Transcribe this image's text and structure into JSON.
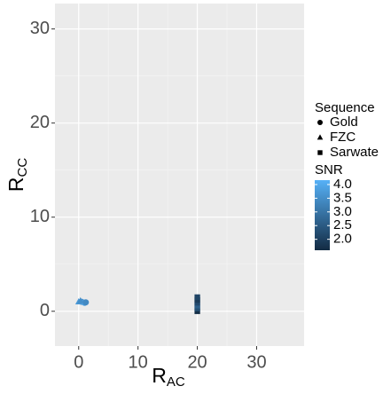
{
  "chart_data": {
    "type": "scatter",
    "xlabel": {
      "text": "R",
      "sub": "AC"
    },
    "ylabel": {
      "text": "R",
      "sub": "CC"
    },
    "xlim": [
      -4,
      38
    ],
    "xticks": [
      0,
      10,
      20,
      30
    ],
    "ylim": [
      -3.7,
      32.7
    ],
    "yticks": [
      0,
      10,
      20,
      30
    ],
    "grid": true,
    "shape_legend_title": "Sequence",
    "series": [
      {
        "name": "Gold",
        "shape": "circle",
        "x": [
          0.5,
          1,
          1.2
        ],
        "y": [
          1,
          0.9,
          0.95
        ],
        "snr": [
          3.6,
          3.8,
          3.4
        ]
      },
      {
        "name": "FZC",
        "shape": "triangle",
        "x": [
          0,
          0.3
        ],
        "y": [
          1.0,
          1.1
        ],
        "snr": [
          3.7,
          3.5
        ]
      },
      {
        "name": "Sarwate",
        "shape": "square",
        "x": [
          20,
          20,
          20,
          20,
          20,
          20
        ],
        "y": [
          0,
          0.3,
          0.6,
          0.9,
          1.2,
          1.5
        ],
        "snr": [
          1.65,
          2.3,
          2.6,
          2.2,
          1.9,
          2.1
        ]
      }
    ],
    "color_legend_title": "SNR",
    "colorlim": [
      1.6,
      4.16
    ],
    "colorticks": [
      {
        "value": 2,
        "label": "2.0"
      },
      {
        "value": 2.5,
        "label": "2.5"
      },
      {
        "value": 3,
        "label": "3.0"
      },
      {
        "value": 3.5,
        "label": "3.5"
      },
      {
        "value": 4,
        "label": "4.0"
      }
    ],
    "color_low": "#132B43",
    "color_high": "#56B1F7"
  }
}
